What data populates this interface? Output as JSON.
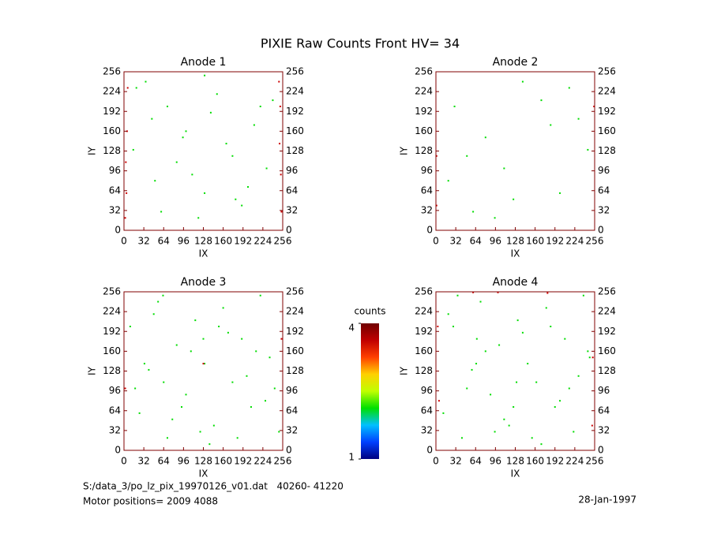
{
  "title": "PIXIE Raw Counts Front HV= 34",
  "chart_data": [
    {
      "type": "scatter",
      "title": "Anode 1",
      "xlabel": "IX",
      "ylabel": "IY",
      "xlim": [
        0,
        256
      ],
      "ylim": [
        0,
        256
      ],
      "xticks": [
        0,
        32,
        64,
        96,
        128,
        160,
        192,
        224,
        256
      ],
      "yticks": [
        0,
        32,
        64,
        96,
        128,
        160,
        192,
        224,
        256
      ],
      "series": [
        {
          "color": "#00dd00",
          "x": [
            20,
            45,
            70,
            95,
            110,
            130,
            150,
            175,
            190,
            210,
            230,
            60,
            85,
            140,
            200,
            35,
            120,
            165,
            240,
            15,
            100,
            180,
            220,
            50,
            130
          ],
          "y": [
            230,
            180,
            200,
            150,
            90,
            60,
            220,
            120,
            40,
            170,
            100,
            30,
            110,
            190,
            70,
            240,
            20,
            140,
            210,
            130,
            160,
            50,
            200,
            80,
            250
          ]
        },
        {
          "color": "#cc0000",
          "x": [
            2,
            4,
            3,
            5,
            252,
            254,
            253,
            251,
            6,
            250
          ],
          "y": [
            20,
            60,
            110,
            160,
            200,
            30,
            90,
            140,
            230,
            240
          ]
        }
      ]
    },
    {
      "type": "scatter",
      "title": "Anode 2",
      "xlabel": "IX",
      "ylabel": "IY",
      "xlim": [
        0,
        256
      ],
      "ylim": [
        0,
        256
      ],
      "xticks": [
        0,
        32,
        64,
        96,
        128,
        160,
        192,
        224,
        256
      ],
      "yticks": [
        0,
        32,
        64,
        96,
        128,
        160,
        192,
        224,
        256
      ],
      "series": [
        {
          "color": "#00dd00",
          "x": [
            30,
            80,
            140,
            200,
            230,
            60,
            110,
            170,
            245,
            20,
            95,
            185,
            215,
            50,
            125
          ],
          "y": [
            200,
            150,
            240,
            60,
            180,
            30,
            100,
            210,
            130,
            80,
            20,
            170,
            230,
            120,
            50
          ]
        },
        {
          "color": "#cc0000",
          "x": [
            1,
            1,
            255
          ],
          "y": [
            40,
            120,
            200
          ]
        }
      ]
    },
    {
      "type": "scatter",
      "title": "Anode 3",
      "xlabel": "IX",
      "ylabel": "IY",
      "xlim": [
        0,
        256
      ],
      "ylim": [
        0,
        256
      ],
      "xticks": [
        0,
        32,
        64,
        96,
        128,
        160,
        192,
        224,
        256
      ],
      "yticks": [
        0,
        32,
        64,
        96,
        128,
        160,
        192,
        224,
        256
      ],
      "series": [
        {
          "color": "#00dd00",
          "x": [
            10,
            25,
            40,
            55,
            70,
            85,
            100,
            115,
            130,
            145,
            160,
            175,
            190,
            205,
            220,
            235,
            250,
            18,
            48,
            78,
            108,
            138,
            168,
            198,
            228,
            33,
            63,
            93,
            123,
            153,
            183,
            213,
            243,
            128,
            64
          ],
          "y": [
            200,
            60,
            130,
            240,
            20,
            170,
            90,
            210,
            140,
            40,
            230,
            110,
            180,
            70,
            250,
            150,
            30,
            100,
            220,
            50,
            160,
            10,
            190,
            120,
            80,
            140,
            250,
            70,
            30,
            200,
            20,
            160,
            100,
            180,
            110
          ]
        },
        {
          "color": "#cc0000",
          "x": [
            2,
            254,
            128
          ],
          "y": [
            100,
            180,
            140
          ]
        }
      ]
    },
    {
      "type": "scatter",
      "title": "Anode 4",
      "xlabel": "IX",
      "ylabel": "IY",
      "xlim": [
        0,
        256
      ],
      "ylim": [
        0,
        256
      ],
      "xticks": [
        0,
        32,
        64,
        96,
        128,
        160,
        192,
        224,
        256
      ],
      "yticks": [
        0,
        32,
        64,
        96,
        128,
        160,
        192,
        224,
        256
      ],
      "series": [
        {
          "color": "#00dd00",
          "x": [
            12,
            28,
            42,
            58,
            72,
            88,
            102,
            118,
            132,
            148,
            162,
            178,
            192,
            208,
            222,
            238,
            248,
            20,
            50,
            80,
            110,
            140,
            170,
            200,
            230,
            35,
            65,
            95,
            125,
            155,
            185,
            215,
            245,
            130,
            66
          ],
          "y": [
            60,
            200,
            20,
            130,
            240,
            90,
            170,
            40,
            210,
            140,
            110,
            230,
            70,
            180,
            30,
            250,
            150,
            220,
            100,
            160,
            50,
            190,
            10,
            80,
            120,
            250,
            140,
            30,
            70,
            20,
            200,
            100,
            160,
            110,
            180
          ]
        },
        {
          "color": "#cc0000",
          "x": [
            5,
            253,
            100,
            180,
            3,
            252,
            60
          ],
          "y": [
            80,
            150,
            255,
            254,
            200,
            40,
            255
          ]
        }
      ]
    },
    {
      "type": "colorbar",
      "label": "counts",
      "ylim": [
        1,
        4
      ],
      "yticks": [
        1,
        4
      ],
      "colors": [
        "#000080",
        "#0040ff",
        "#00c0ff",
        "#00e000",
        "#c0ff00",
        "#ffd000",
        "#ff4000",
        "#c00000",
        "#700000"
      ]
    }
  ],
  "footer": {
    "file": "S:/data_3/po_lz_pix_19970126_v01.dat   40260- 41220",
    "motor": "Motor positions= 2009 4088",
    "date": "28-Jan-1997"
  }
}
